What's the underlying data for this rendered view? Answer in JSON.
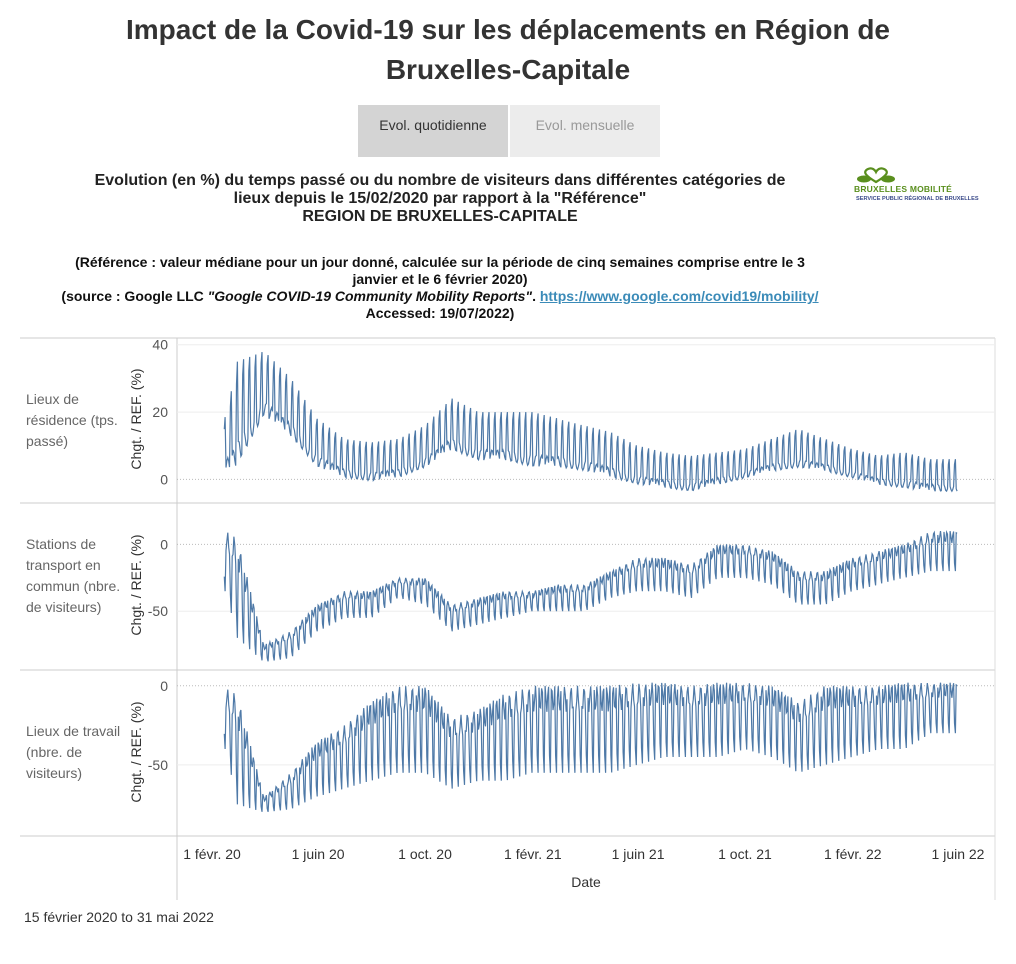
{
  "title": "Impact de la Covid-19 sur les déplacements en Région de Bruxelles-Capitale",
  "title_lines": [
    "Impact de la Covid-19 sur les déplacements en Région de",
    "Bruxelles-Capitale"
  ],
  "tabs": [
    {
      "label": "Evol. quotidienne",
      "selected": true
    },
    {
      "label": "Evol. mensuelle",
      "selected": false
    }
  ],
  "subtitle_lines": [
    "Evolution (en %) du temps passé ou du nombre de visiteurs dans différentes catégories de",
    "lieux depuis le 15/02/2020 par rapport à la \"Référence\"",
    "REGION DE BRUXELLES-CAPITALE"
  ],
  "note": {
    "line1": "(Référence : valeur médiane pour un jour donné, calculée sur la période de cinq semaines comprise entre le 3",
    "line2": "janvier et le 6 février 2020)",
    "source_prefix": "(source : Google LLC ",
    "source_title": "\"Google COVID-19 Community Mobility Reports\"",
    "source_sep": ". ",
    "link": "https://www.google.com/covid19/mobility/",
    "accessed": "Accessed: 19/07/2022)"
  },
  "logo": {
    "line1": "BRUXELLES MOBILITÉ",
    "line2": "SERVICE PUBLIC RÉGIONAL DE BRUXELLES"
  },
  "footer": "15 février 2020 to 31 mai 2022",
  "colors": {
    "line": "#4e79a7",
    "logo_green": "#5a8f1e",
    "logo_blue": "#3a4a8a",
    "link": "#3b8bb8"
  },
  "chart_data": {
    "type": "line",
    "xlabel": "Date",
    "x_range": [
      "2020-02-15",
      "2022-05-31"
    ],
    "x_ticks": [
      {
        "date": "2020-02-01",
        "label": "1 févr. 20"
      },
      {
        "date": "2020-06-01",
        "label": "1 juin 20"
      },
      {
        "date": "2020-10-01",
        "label": "1 oct. 20"
      },
      {
        "date": "2021-02-01",
        "label": "1 févr. 21"
      },
      {
        "date": "2021-06-01",
        "label": "1 juin 21"
      },
      {
        "date": "2021-10-01",
        "label": "1 oct. 21"
      },
      {
        "date": "2022-02-01",
        "label": "1 févr. 22"
      },
      {
        "date": "2022-06-01",
        "label": "1 juin 22"
      }
    ],
    "months": [
      "2020-02",
      "2020-03",
      "2020-04",
      "2020-05",
      "2020-06",
      "2020-07",
      "2020-08",
      "2020-09",
      "2020-10",
      "2020-11",
      "2020-12",
      "2021-01",
      "2021-02",
      "2021-03",
      "2021-04",
      "2021-05",
      "2021-06",
      "2021-07",
      "2021-08",
      "2021-09",
      "2021-10",
      "2021-11",
      "2021-12",
      "2022-01",
      "2022-02",
      "2022-03",
      "2022-04",
      "2022-05"
    ],
    "panels": [
      {
        "label": "Lieux de résidence (tps. passé)",
        "ylabel": "Chgt. / REF. (%)",
        "ylim": [
          -7,
          42
        ],
        "y_ticks": [
          0,
          20,
          40
        ],
        "weekly_high_on": "weekend",
        "monthly_high": [
          2,
          35,
          38,
          30,
          18,
          12,
          11,
          12,
          16,
          24,
          20,
          20,
          20,
          18,
          16,
          14,
          10,
          8,
          7,
          8,
          9,
          12,
          15,
          12,
          9,
          7,
          8,
          6
        ],
        "monthly_low": [
          -1,
          3,
          18,
          12,
          3,
          0,
          -1,
          0,
          3,
          8,
          5,
          5,
          3,
          3,
          2,
          0,
          -2,
          -3,
          -4,
          -2,
          0,
          2,
          3,
          2,
          0,
          -2,
          -3,
          -4
        ]
      },
      {
        "label": "Stations de transport en commun (nbre. de visiteurs)",
        "ylabel": "Chgt. / REF. (%)",
        "ylim": [
          -94,
          31
        ],
        "y_ticks": [
          0,
          -50
        ],
        "weekly_high_on": "weekday",
        "monthly_high": [
          15,
          5,
          -75,
          -65,
          -45,
          -35,
          -35,
          -25,
          -25,
          -45,
          -40,
          -35,
          -35,
          -30,
          -30,
          -20,
          -10,
          -10,
          -15,
          0,
          0,
          -5,
          -20,
          -20,
          -10,
          -5,
          0,
          10
        ],
        "monthly_low": [
          0,
          -70,
          -88,
          -85,
          -65,
          -55,
          -55,
          -40,
          -45,
          -65,
          -60,
          -55,
          -50,
          -50,
          -50,
          -40,
          -35,
          -35,
          -40,
          -25,
          -25,
          -30,
          -45,
          -45,
          -35,
          -30,
          -25,
          -20
        ]
      },
      {
        "label": "Lieux de travail  (nbre. de visiteurs)",
        "ylabel": "Chgt. / REF. (%)",
        "ylim": [
          -95,
          10
        ],
        "y_ticks": [
          0,
          -50
        ],
        "weekly_high_on": "weekday",
        "monthly_high": [
          2,
          -5,
          -70,
          -55,
          -35,
          -25,
          -10,
          0,
          0,
          -20,
          -15,
          -5,
          0,
          0,
          0,
          0,
          2,
          2,
          0,
          2,
          2,
          0,
          -10,
          0,
          0,
          0,
          2,
          2
        ],
        "monthly_low": [
          -5,
          -75,
          -80,
          -78,
          -70,
          -65,
          -60,
          -55,
          -55,
          -65,
          -60,
          -60,
          -55,
          -55,
          -55,
          -55,
          -50,
          -45,
          -45,
          -45,
          -40,
          -45,
          -55,
          -50,
          -45,
          -40,
          -40,
          -30
        ]
      }
    ]
  }
}
